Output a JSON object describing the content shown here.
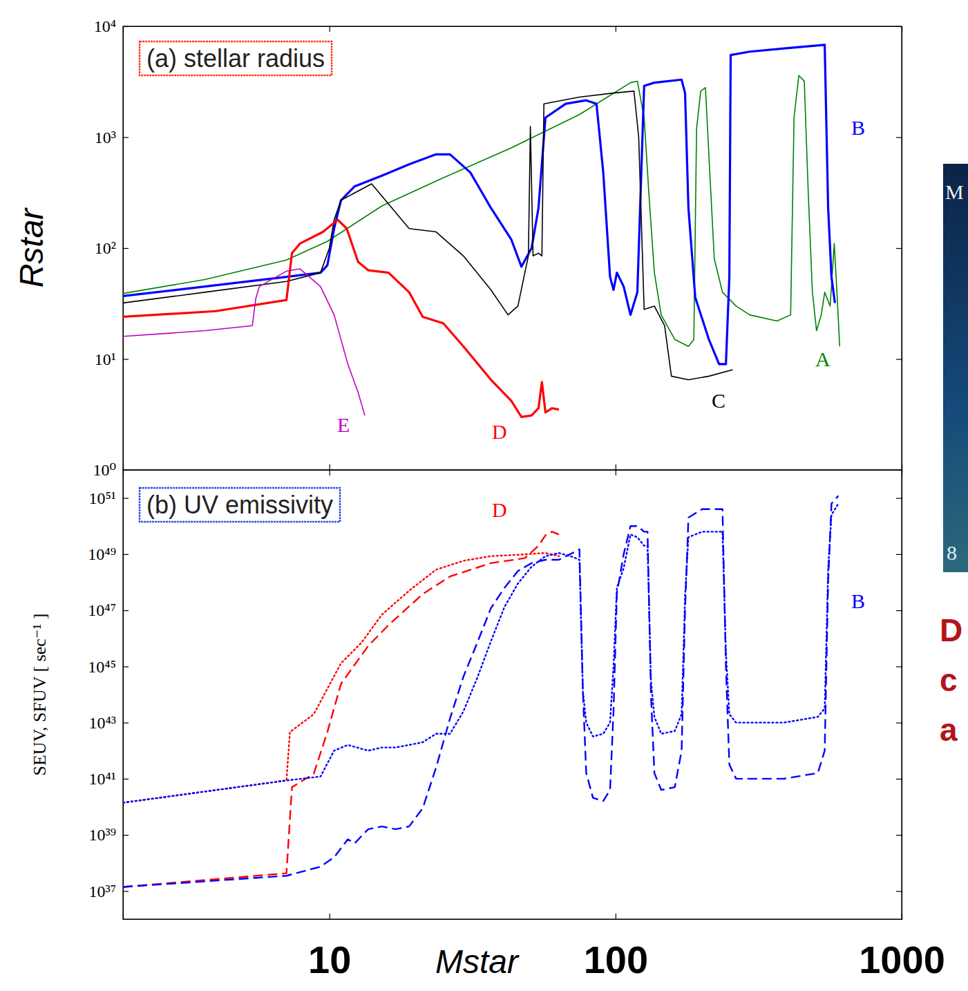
{
  "chart_data": [
    {
      "type": "line",
      "title": "(a) stellar radius",
      "y_label": "Rstar",
      "log": true,
      "tick_labels": "y",
      "xlim": [
        1.9,
        1000
      ],
      "xticks": [
        10,
        100,
        1000
      ],
      "ylim": [
        1,
        10000
      ],
      "yticks": [
        {
          "value": 1,
          "label": "10⁰"
        },
        {
          "value": 10,
          "label": "10¹"
        },
        {
          "value": 100,
          "label": "10²"
        },
        {
          "value": 1000,
          "label": "10³"
        },
        {
          "value": 10000,
          "label": "10⁴"
        }
      ],
      "series": [
        {
          "name": "A",
          "color": "#008000",
          "line_style": "solid",
          "x": [
            1.9,
            3.67,
            7.08,
            9.84,
            15.26,
            25.0,
            43.2,
            74.8,
            112.8,
            119.2,
            125.9,
            130.9,
            136.7,
            144.4,
            161.1,
            179.8,
            187.8,
            192.0,
            198.5,
            206.2,
            214.3,
            221.4,
            236.5,
            263.9,
            294.4,
            366.7,
            409.2,
            420.6,
            437.1,
            456.7,
            471.9,
            487.6,
            504.0,
            523.6,
            538.3,
            562.3,
            581.3,
            594.1,
            607.3
          ],
          "values": [
            39,
            52,
            78,
            115,
            240,
            430,
            800,
            1600,
            3100,
            3200,
            1500,
            300,
            60,
            25,
            15,
            13,
            15,
            1200,
            2600,
            2800,
            400,
            80,
            40,
            30,
            25,
            22,
            25,
            1500,
            3600,
            3200,
            300,
            40,
            18,
            25,
            40,
            30,
            110,
            40,
            13
          ]
        },
        {
          "name": "B",
          "color": "#0000ff",
          "line_style": "solid",
          "x": [
            1.9,
            3.67,
            7.08,
            9.31,
            9.84,
            10.39,
            10.98,
            12.25,
            15.26,
            19.0,
            23.6,
            26.4,
            31.1,
            36.7,
            43.2,
            46.9,
            50.9,
            53.8,
            56.9,
            67.0,
            79.0,
            85.8,
            90.6,
            95.7,
            98.4,
            101.1,
            106.8,
            112.8,
            119.2,
            125.9,
            136.7,
            170.2,
            175.0,
            179.8,
            189.9,
            212.0,
            230.1,
            243.1,
            249.9,
            252.6,
            294.4,
            387.3,
            538.3,
            553.4,
            568.5,
            584.5
          ],
          "values": [
            37,
            45,
            55,
            60,
            70,
            150,
            270,
            360,
            450,
            570,
            700,
            700,
            480,
            230,
            120,
            68,
            100,
            230,
            1500,
            2000,
            2150,
            2000,
            480,
            55,
            42,
            60,
            45,
            25,
            40,
            2900,
            3100,
            3300,
            2500,
            230,
            36,
            15,
            9,
            9,
            55,
            5500,
            5900,
            6300,
            6800,
            230,
            55,
            32
          ]
        },
        {
          "name": "C",
          "color": "#000000",
          "line_style": "solid",
          "x": [
            1.9,
            3.67,
            7.08,
            9.31,
            10.0,
            10.39,
            10.98,
            14.05,
            19.0,
            23.6,
            29.4,
            36.7,
            42.1,
            45.6,
            48.2,
            49.6,
            50.4,
            51.5,
            53.8,
            55.3,
            56.2,
            74.8,
            98.4,
            116.0,
            120.5,
            125.9,
            136.7,
            148.4,
            156.8,
            179.8,
            212.0,
            256.8
          ],
          "values": [
            32,
            40,
            50,
            60,
            100,
            180,
            270,
            380,
            150,
            140,
            85,
            42,
            25,
            30,
            60,
            85,
            1250,
            85,
            90,
            85,
            2000,
            2300,
            2500,
            2600,
            1000,
            28,
            30,
            20,
            7,
            6.5,
            7,
            8
          ]
        },
        {
          "name": "D",
          "color": "#ff0000",
          "line_style": "solid",
          "x": [
            1.9,
            4.0,
            7.08,
            7.4,
            7.9,
            9.5,
            10.7,
            11.5,
            12.6,
            13.7,
            16.1,
            19.0,
            21.2,
            25.0,
            29.4,
            36.7,
            43.2,
            46.9,
            50.9,
            53.8,
            55.3,
            56.9,
            60.0,
            63.4
          ],
          "values": [
            24,
            27,
            34,
            90,
            110,
            140,
            180,
            150,
            75,
            63,
            60,
            40,
            24,
            21,
            13,
            6.5,
            4.2,
            3.0,
            3.1,
            3.6,
            6.2,
            3.3,
            3.6,
            3.5
          ]
        },
        {
          "name": "E",
          "color": "#bf00bf",
          "line_style": "solid",
          "x": [
            1.9,
            3.67,
            5.38,
            5.53,
            5.69,
            7.08,
            7.9,
            9.31,
            10.39,
            11.6,
            12.6,
            13.3
          ],
          "values": [
            16,
            18,
            20,
            35,
            45,
            62,
            65,
            45,
            25,
            9,
            5,
            3.1
          ]
        }
      ]
    },
    {
      "type": "line",
      "title": "(b) UV emissivity",
      "x_label": "Mstar",
      "y_label": "SEUV, SFUV [ sec⁻¹ ]",
      "log": true,
      "xlim": [
        1.9,
        1000
      ],
      "xticks": [
        10,
        100,
        1000
      ],
      "ylim": [
        1e+36,
        1e+52
      ],
      "yticks": [
        {
          "value": 1e+37,
          "label": "10³⁷"
        },
        {
          "value": 1e+39,
          "label": "10³⁹"
        },
        {
          "value": 1e+41,
          "label": "10⁴¹"
        },
        {
          "value": 1e+43,
          "label": "10⁴³"
        },
        {
          "value": 1e+45,
          "label": "10⁴⁵"
        },
        {
          "value": 1e+47,
          "label": "10⁴⁷"
        },
        {
          "value": 1e+49,
          "label": "10⁴⁹"
        },
        {
          "value": 1e+51,
          "label": "10⁵¹"
        }
      ],
      "series": [
        {
          "color": "#ff0000",
          "line_style": "dotted",
          "x": [
            1.9,
            7.08,
            7.28,
            8.82,
            10.98,
            12.94,
            15.26,
            19.0,
            23.6,
            29.4,
            36.7,
            45.6,
            56.9,
            63.4
          ],
          "values": [
            1.4e+40,
            8.7e+40,
            4.6e+42,
            2e+43,
            1.3e+45,
            7e+45,
            7e+46,
            5e+47,
            2.8e+48,
            5.8e+48,
            8.5e+48,
            9.5e+48,
            1.1e+49,
            8.5e+48
          ]
        },
        {
          "color": "#ff0000",
          "line_style": "dashed",
          "x": [
            1.9,
            7.08,
            7.4,
            8.82,
            9.84,
            10.98,
            13.67,
            16.11,
            21.2,
            26.4,
            36.7,
            48.2,
            53.8,
            56.9,
            60.0,
            63.4
          ],
          "values": [
            1.4e+37,
            4.3e+37,
            5e+40,
            1.5e+41,
            4.6e+42,
            2.4e+44,
            5.4e+45,
            3e+46,
            3.8e+47,
            1.6e+48,
            4.8e+48,
            7.2e+48,
            2e+49,
            4.7e+49,
            6.3e+49,
            5e+49
          ]
        },
        {
          "color": "#0000ff",
          "line_style": "dotted",
          "x": [
            1.9,
            7.08,
            9.31,
            10.39,
            11.6,
            13.67,
            15.26,
            17.02,
            19.0,
            21.2,
            23.6,
            26.4,
            29.4,
            32.9,
            36.7,
            40.9,
            45.6,
            50.9,
            56.9,
            63.4,
            70.8,
            74.8,
            76.9,
            79.0,
            83.4,
            90.6,
            95.7,
            98.4,
            101.1,
            106.8,
            112.8,
            119.2,
            125.9,
            129.4,
            133.0,
            136.7,
            144.4,
            161.1,
            170.2,
            175.0,
            179.8,
            200.7,
            236.5,
            243.1,
            249.9,
            263.9,
            294.4,
            387.3,
            509.4,
            538.3,
            553.4,
            568.5,
            600.7
          ],
          "values": [
            1.4e+40,
            8.7e+40,
            1.2e+41,
            1e+42,
            1.6e+42,
            1e+42,
            1.3e+42,
            1.3e+42,
            1.6e+42,
            2e+42,
            4e+42,
            4e+42,
            2.5e+43,
            4e+44,
            8e+45,
            1.3e+47,
            9e+47,
            3.6e+48,
            8.5e+48,
            1.1e+49,
            8e+48,
            6.3e+48,
            1.3e+44,
            1e+43,
            3.2e+42,
            4e+42,
            1e+43,
            1e+45,
            6.3e+47,
            3.2e+48,
            5e+49,
            4e+49,
            2e+49,
            2e+49,
            3.2e+44,
            1.6e+43,
            4e+42,
            5e+42,
            2e+43,
            3.2e+47,
            4e+49,
            6.3e+49,
            6.3e+49,
            3.2e+45,
            2e+43,
            1e+43,
            1e+43,
            1e+43,
            1.6e+43,
            3.2e+43,
            3.2e+48,
            2.5e+50,
            6.3e+50
          ]
        },
        {
          "color": "#0000ff",
          "line_style": "dashed",
          "x": [
            1.9,
            7.08,
            9.31,
            10.39,
            11.6,
            12.25,
            13.67,
            15.26,
            17.02,
            19.0,
            21.2,
            23.6,
            26.4,
            29.4,
            32.9,
            36.7,
            40.9,
            45.6,
            50.9,
            56.9,
            63.4,
            70.8,
            74.8,
            76.9,
            79.0,
            83.4,
            90.6,
            95.7,
            98.4,
            101.1,
            106.8,
            112.8,
            119.2,
            125.9,
            129.4,
            133.0,
            136.7,
            144.4,
            161.1,
            170.2,
            175.0,
            179.8,
            200.7,
            236.5,
            243.1,
            249.9,
            263.9,
            294.4,
            387.3,
            509.4,
            538.3,
            553.4,
            568.5,
            600.7
          ],
          "values": [
            1.4e+37,
            3.5e+37,
            7.4e+37,
            1.6e+38,
            7e+38,
            5e+38,
            1.6e+39,
            2e+39,
            1.6e+39,
            2e+39,
            9e+39,
            2.5e+41,
            1.4e+43,
            4.3e+44,
            7.2e+45,
            1.2e+47,
            6.3e+47,
            2.5e+48,
            4.8e+48,
            6.3e+48,
            6.3e+48,
            1.1e+49,
            1.5e+49,
            1.3e+44,
            1.6e+41,
            2.1e+40,
            1.6e+40,
            4e+40,
            2.5e+43,
            4e+47,
            1e+49,
            1e+50,
            1e+50,
            6.3e+49,
            6.3e+49,
            1e+44,
            1.6e+41,
            4e+40,
            5e+40,
            1e+42,
            1e+47,
            2e+50,
            4e+50,
            4e+50,
            1e+45,
            3.2e+41,
            1e+41,
            1e+41,
            1e+41,
            1.6e+41,
            1e+42,
            1e+48,
            6.3e+50,
            1.2e+51
          ]
        }
      ],
      "annotations": [
        {
          "text": "D"
        },
        {
          "text": "B"
        }
      ]
    }
  ],
  "side_panel": {
    "texts": [
      "M",
      "8"
    ],
    "caption": [
      "D",
      "c",
      "a"
    ]
  }
}
